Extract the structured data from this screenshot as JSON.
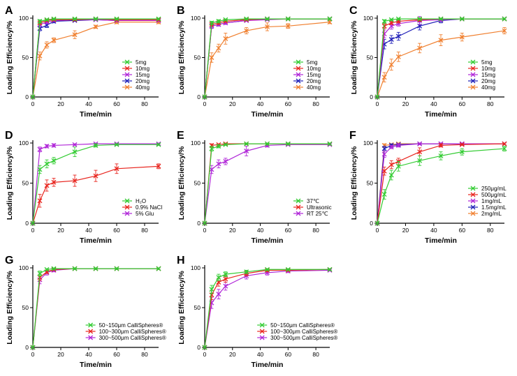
{
  "colors": {
    "green": "#33cc33",
    "red": "#e8251e",
    "purple": "#b026d8",
    "blue": "#2020b8",
    "orange": "#f08030",
    "axis": "#000000"
  },
  "chart_data": [
    {
      "type": "line",
      "panel_label": "A",
      "xlabel": "Time/min",
      "ylabel": "Loading Efficiency/%",
      "xlim": [
        0,
        90
      ],
      "ylim": [
        0,
        100
      ],
      "xticks": [
        "0",
        "20",
        "40",
        "60",
        "80"
      ],
      "yticks": [
        "0",
        "50",
        "100"
      ],
      "legend_position": "bottom-right",
      "x": [
        0,
        5,
        10,
        15,
        30,
        45,
        60,
        90
      ],
      "series": [
        {
          "name": "5mg",
          "color": "green",
          "values": [
            0,
            96,
            98,
            99,
            99,
            99,
            99,
            99
          ],
          "errors": [
            0,
            2,
            1,
            1,
            1,
            1,
            1,
            1
          ]
        },
        {
          "name": "10mg",
          "color": "red",
          "values": [
            0,
            94,
            97,
            98,
            98,
            99,
            98,
            98
          ],
          "errors": [
            0,
            2,
            1,
            1,
            1,
            1,
            1,
            1
          ]
        },
        {
          "name": "15mg",
          "color": "purple",
          "values": [
            0,
            92,
            95,
            97,
            98,
            98,
            97,
            97
          ],
          "errors": [
            0,
            2,
            2,
            1,
            1,
            1,
            1,
            1
          ]
        },
        {
          "name": "20mg",
          "color": "blue",
          "values": [
            0,
            87,
            91,
            96,
            97,
            98,
            97,
            97
          ],
          "errors": [
            0,
            3,
            3,
            2,
            1,
            1,
            1,
            1
          ]
        },
        {
          "name": "40mg",
          "color": "orange",
          "values": [
            0,
            52,
            66,
            72,
            79,
            89,
            95,
            95
          ],
          "errors": [
            0,
            5,
            4,
            3,
            5,
            2,
            2,
            2
          ]
        }
      ]
    },
    {
      "type": "line",
      "panel_label": "B",
      "xlabel": "Time/min",
      "ylabel": "Loading Efficiency/%",
      "xlim": [
        0,
        90
      ],
      "ylim": [
        0,
        100
      ],
      "xticks": [
        "0",
        "20",
        "40",
        "60",
        "80"
      ],
      "yticks": [
        "0",
        "50",
        "100"
      ],
      "legend_position": "bottom-right",
      "x": [
        0,
        5,
        10,
        15,
        30,
        45,
        60,
        90
      ],
      "series": [
        {
          "name": "5mg",
          "color": "green",
          "values": [
            0,
            94,
            96,
            98,
            99,
            99,
            99,
            99
          ],
          "errors": [
            0,
            2,
            2,
            1,
            1,
            1,
            1,
            1
          ]
        },
        {
          "name": "10mg",
          "color": "red",
          "values": [
            0,
            92,
            94,
            96,
            98,
            99,
            99,
            99
          ],
          "errors": [
            0,
            2,
            2,
            1,
            1,
            1,
            1,
            1
          ]
        },
        {
          "name": "15mg",
          "color": "purple",
          "values": [
            0,
            90,
            92,
            94,
            97,
            98,
            99,
            99
          ],
          "errors": [
            0,
            3,
            2,
            2,
            1,
            1,
            1,
            1
          ]
        },
        {
          "name": "20mg",
          "color": "blue",
          "values": [
            0,
            90,
            92,
            94,
            97,
            99,
            99,
            99
          ],
          "errors": [
            0,
            3,
            2,
            2,
            1,
            1,
            1,
            1
          ]
        },
        {
          "name": "40mg",
          "color": "orange",
          "values": [
            0,
            50,
            62,
            74,
            84,
            89,
            90,
            95
          ],
          "errors": [
            0,
            6,
            5,
            7,
            4,
            5,
            3,
            2
          ]
        }
      ]
    },
    {
      "type": "line",
      "panel_label": "C",
      "xlabel": "Time/min",
      "ylabel": "Loading Efficiency/%",
      "xlim": [
        0,
        90
      ],
      "ylim": [
        0,
        100
      ],
      "xticks": [
        "0",
        "20",
        "40",
        "60",
        "80"
      ],
      "yticks": [
        "0",
        "50",
        "100"
      ],
      "legend_position": "bottom-right",
      "x": [
        0,
        5,
        10,
        15,
        30,
        45,
        60,
        90
      ],
      "series": [
        {
          "name": "5mg",
          "color": "green",
          "values": [
            0,
            96,
            98,
            99,
            99,
            99,
            99,
            99
          ],
          "errors": [
            0,
            2,
            1,
            1,
            1,
            1,
            1,
            1
          ]
        },
        {
          "name": "10mg",
          "color": "red",
          "values": [
            0,
            90,
            94,
            96,
            98,
            99,
            99,
            99
          ],
          "errors": [
            0,
            3,
            2,
            2,
            2,
            1,
            1,
            1
          ]
        },
        {
          "name": "15mg",
          "color": "purple",
          "values": [
            0,
            80,
            90,
            93,
            97,
            98,
            99,
            99
          ],
          "errors": [
            0,
            5,
            4,
            3,
            5,
            2,
            1,
            1
          ]
        },
        {
          "name": "20mg",
          "color": "blue",
          "values": [
            0,
            67,
            73,
            77,
            90,
            97,
            99,
            99
          ],
          "errors": [
            0,
            6,
            5,
            5,
            5,
            3,
            1,
            1
          ]
        },
        {
          "name": "40mg",
          "color": "orange",
          "values": [
            0,
            25,
            41,
            51,
            62,
            72,
            76,
            84
          ],
          "errors": [
            0,
            6,
            7,
            6,
            6,
            7,
            5,
            4
          ]
        }
      ]
    },
    {
      "type": "line",
      "panel_label": "D",
      "xlabel": "Time/min",
      "ylabel": "Loading Efficiency/%",
      "xlim": [
        0,
        90
      ],
      "ylim": [
        0,
        100
      ],
      "xticks": [
        "0",
        "20",
        "40",
        "60",
        "80"
      ],
      "yticks": [
        "0",
        "50",
        "100"
      ],
      "legend_position": "bottom-right",
      "x": [
        0,
        5,
        10,
        15,
        30,
        45,
        60,
        90
      ],
      "series": [
        {
          "name": "H₂O",
          "color": "green",
          "values": [
            0,
            67,
            74,
            78,
            89,
            97,
            98,
            98
          ],
          "errors": [
            0,
            5,
            5,
            4,
            6,
            2,
            1,
            1
          ]
        },
        {
          "name": "0.9% NaCl",
          "color": "red",
          "values": [
            0,
            28,
            47,
            51,
            53,
            59,
            68,
            71
          ],
          "errors": [
            0,
            8,
            7,
            5,
            7,
            7,
            6,
            3
          ]
        },
        {
          "name": "5% Glu",
          "color": "purple",
          "values": [
            0,
            92,
            96,
            97,
            98,
            99,
            99,
            99
          ],
          "errors": [
            0,
            3,
            2,
            2,
            1,
            1,
            1,
            1
          ]
        }
      ]
    },
    {
      "type": "line",
      "panel_label": "E",
      "xlabel": "Time/min",
      "ylabel": "Loading Efficiency/%",
      "xlim": [
        0,
        90
      ],
      "ylim": [
        0,
        100
      ],
      "xticks": [
        "0",
        "20",
        "40",
        "60",
        "80"
      ],
      "yticks": [
        "0",
        "50",
        "100"
      ],
      "legend_position": "bottom-right",
      "x": [
        0,
        5,
        10,
        15,
        30,
        45,
        60,
        90
      ],
      "series": [
        {
          "name": "37℃",
          "color": "green",
          "values": [
            0,
            93,
            96,
            98,
            99,
            99,
            99,
            99
          ],
          "errors": [
            0,
            3,
            2,
            1,
            1,
            1,
            1,
            1
          ]
        },
        {
          "name": "Ultrasonic",
          "color": "red",
          "values": [
            0,
            97,
            98,
            99,
            99,
            99,
            99,
            99
          ],
          "errors": [
            0,
            2,
            1,
            1,
            1,
            1,
            1,
            1
          ]
        },
        {
          "name": "RT 25℃",
          "color": "purple",
          "values": [
            0,
            67,
            74,
            77,
            90,
            97,
            98,
            98
          ],
          "errors": [
            0,
            5,
            5,
            4,
            6,
            2,
            1,
            1
          ]
        }
      ]
    },
    {
      "type": "line",
      "panel_label": "F",
      "xlabel": "Time/min",
      "ylabel": "Loading Efficiency/%",
      "xlim": [
        0,
        90
      ],
      "ylim": [
        0,
        100
      ],
      "xticks": [
        "0",
        "20",
        "40",
        "60",
        "80"
      ],
      "yticks": [
        "0",
        "50",
        "100"
      ],
      "legend_position": "bottom-right",
      "x": [
        0,
        5,
        10,
        15,
        30,
        45,
        60,
        90
      ],
      "series": [
        {
          "name": "250μg/mL",
          "color": "green",
          "values": [
            0,
            36,
            60,
            71,
            78,
            84,
            89,
            93
          ],
          "errors": [
            0,
            6,
            6,
            6,
            6,
            5,
            4,
            3
          ]
        },
        {
          "name": "500μg/mL",
          "color": "red",
          "values": [
            0,
            65,
            73,
            77,
            89,
            97,
            98,
            99
          ],
          "errors": [
            0,
            5,
            5,
            4,
            5,
            2,
            1,
            1
          ]
        },
        {
          "name": "1mg/mL",
          "color": "purple",
          "values": [
            0,
            86,
            95,
            97,
            99,
            99,
            99,
            99
          ],
          "errors": [
            0,
            4,
            2,
            2,
            1,
            1,
            1,
            1
          ]
        },
        {
          "name": "1.5mg/mL",
          "color": "blue",
          "values": [
            0,
            93,
            97,
            98,
            99,
            99,
            99,
            99
          ],
          "errors": [
            0,
            3,
            2,
            1,
            1,
            1,
            1,
            1
          ]
        },
        {
          "name": "2mg/mL",
          "color": "orange",
          "values": [
            0,
            97,
            98,
            99,
            99,
            99,
            99,
            99
          ],
          "errors": [
            0,
            2,
            1,
            1,
            1,
            1,
            1,
            1
          ]
        }
      ]
    },
    {
      "type": "line",
      "panel_label": "G",
      "xlabel": "Time/min",
      "ylabel": "Loading Efficiency/%",
      "xlim": [
        0,
        90
      ],
      "ylim": [
        0,
        100
      ],
      "xticks": [
        "0",
        "20",
        "40",
        "60",
        "80"
      ],
      "yticks": [
        "0",
        "50",
        "100"
      ],
      "legend_position": "bottom-right",
      "x": [
        0,
        5,
        10,
        15,
        30,
        45,
        60,
        90
      ],
      "series": [
        {
          "name": "50~150μm CalliSpheres®",
          "color": "green",
          "values": [
            0,
            93,
            98,
            99,
            99,
            99,
            99,
            99
          ],
          "errors": [
            0,
            3,
            1,
            1,
            1,
            1,
            1,
            1
          ]
        },
        {
          "name": "100~300μm CalliSpheres®",
          "color": "red",
          "values": [
            0,
            88,
            95,
            98,
            99,
            99,
            99,
            99
          ],
          "errors": [
            0,
            4,
            2,
            1,
            1,
            1,
            1,
            1
          ]
        },
        {
          "name": "300~500μm CalliSpheres®",
          "color": "purple",
          "values": [
            0,
            85,
            94,
            97,
            99,
            99,
            99,
            99
          ],
          "errors": [
            0,
            5,
            3,
            2,
            1,
            1,
            1,
            1
          ]
        }
      ]
    },
    {
      "type": "line",
      "panel_label": "H",
      "xlabel": "Time/min",
      "ylabel": "Loading Efficiency/%",
      "xlim": [
        0,
        90
      ],
      "ylim": [
        0,
        100
      ],
      "xticks": [
        "0",
        "20",
        "40",
        "60",
        "80"
      ],
      "yticks": [
        "0",
        "50",
        "100"
      ],
      "legend_position": "bottom-right",
      "x": [
        0,
        5,
        10,
        15,
        30,
        45,
        60,
        90
      ],
      "series": [
        {
          "name": "50~150μm CalliSpheres®",
          "color": "green",
          "values": [
            0,
            73,
            88,
            92,
            95,
            98,
            98,
            98
          ],
          "errors": [
            0,
            5,
            4,
            3,
            2,
            1,
            1,
            1
          ]
        },
        {
          "name": "100~300μm CalliSpheres®",
          "color": "red",
          "values": [
            0,
            66,
            82,
            86,
            93,
            97,
            97,
            98
          ],
          "errors": [
            0,
            6,
            5,
            4,
            3,
            2,
            1,
            1
          ]
        },
        {
          "name": "300~500μm CalliSpheres®",
          "color": "purple",
          "values": [
            0,
            56,
            67,
            77,
            90,
            94,
            96,
            97
          ],
          "errors": [
            0,
            7,
            6,
            5,
            4,
            3,
            2,
            1
          ]
        }
      ]
    }
  ]
}
